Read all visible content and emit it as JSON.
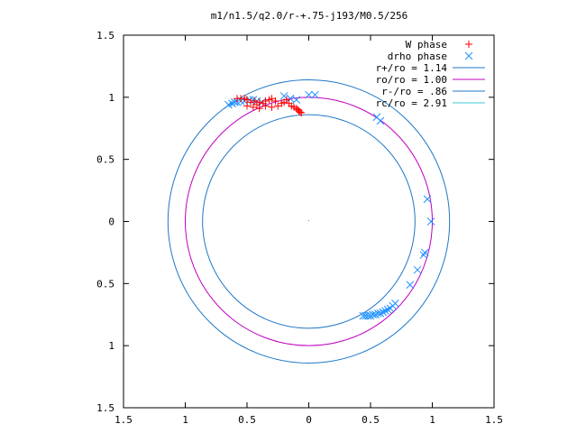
{
  "chart_data": {
    "type": "scatter",
    "title": "m1/n1.5/q2.0/r-+.75-j193/M0.5/256",
    "xlim": [
      -1.5,
      1.5
    ],
    "ylim": [
      -1.5,
      1.5
    ],
    "x_ticks": [
      -1.5,
      -1,
      -0.5,
      0,
      0.5,
      1,
      1.5
    ],
    "x_tick_labels": [
      "1.5",
      "1",
      "0.5",
      "0",
      "0.5",
      "1",
      "1.5"
    ],
    "y_ticks": [
      1.5,
      1,
      0.5,
      0,
      -0.5,
      -1,
      -1.5
    ],
    "y_tick_labels": [
      "1.5",
      "1",
      "0.5",
      "0",
      "0.5",
      "1",
      "1.5"
    ],
    "grid": false,
    "legend_position": "top-right",
    "legend": [
      {
        "label": "W phase",
        "kind": "point",
        "marker": "+",
        "color": "#ff0000"
      },
      {
        "label": "drho phase",
        "kind": "point",
        "marker": "x",
        "color": "#1e90ff"
      },
      {
        "label": "r+/ro = 1.14",
        "kind": "line",
        "color": "#1f77c8"
      },
      {
        "label": "ro/ro = 1.00",
        "kind": "line",
        "color": "#c000c0"
      },
      {
        "label": "r-/ro = .86",
        "kind": "line",
        "color": "#1f77c8"
      },
      {
        "label": "rc/ro = 2.91",
        "kind": "line",
        "color": "#3cc8d8"
      }
    ],
    "circles": [
      {
        "r": 1.14,
        "color": "#1f77c8"
      },
      {
        "r": 1.0,
        "color": "#c000c0"
      },
      {
        "r": 0.86,
        "color": "#1f77c8"
      }
    ],
    "series": [
      {
        "name": "W phase",
        "marker": "+",
        "color": "#ff0000",
        "points": [
          [
            -0.58,
            0.99
          ],
          [
            -0.55,
            0.99
          ],
          [
            -0.52,
            0.99
          ],
          [
            -0.5,
            0.98
          ],
          [
            -0.47,
            0.96
          ],
          [
            -0.5,
            0.93
          ],
          [
            -0.45,
            0.92
          ],
          [
            -0.42,
            0.94
          ],
          [
            -0.4,
            0.96
          ],
          [
            -0.37,
            0.95
          ],
          [
            -0.35,
            0.97
          ],
          [
            -0.32,
            0.98
          ],
          [
            -0.3,
            0.99
          ],
          [
            -0.27,
            0.97
          ],
          [
            -0.25,
            0.93
          ],
          [
            -0.22,
            0.95
          ],
          [
            -0.2,
            0.96
          ],
          [
            -0.18,
            0.98
          ],
          [
            -0.16,
            0.95
          ],
          [
            -0.14,
            0.93
          ],
          [
            -0.12,
            0.92
          ],
          [
            -0.1,
            0.91
          ],
          [
            -0.09,
            0.9
          ],
          [
            -0.08,
            0.89
          ],
          [
            -0.07,
            0.88
          ],
          [
            -0.06,
            0.875
          ],
          [
            -0.3,
            0.92
          ],
          [
            -0.35,
            0.93
          ],
          [
            -0.4,
            0.91
          ],
          [
            -0.44,
            0.97
          ]
        ]
      },
      {
        "name": "drho phase",
        "marker": "x",
        "color": "#1e90ff",
        "points": [
          [
            -0.65,
            0.94
          ],
          [
            -0.62,
            0.95
          ],
          [
            -0.6,
            0.96
          ],
          [
            -0.58,
            0.96
          ],
          [
            -0.55,
            0.97
          ],
          [
            -0.52,
            0.97
          ],
          [
            -0.48,
            0.98
          ],
          [
            -0.45,
            0.98
          ],
          [
            -0.42,
            0.97
          ],
          [
            -0.38,
            0.96
          ],
          [
            -0.2,
            1.01
          ],
          [
            -0.15,
            0.99
          ],
          [
            -0.1,
            0.98
          ],
          [
            0.0,
            1.02
          ],
          [
            0.05,
            1.02
          ],
          [
            0.55,
            0.84
          ],
          [
            0.58,
            0.81
          ],
          [
            0.96,
            0.18
          ],
          [
            0.99,
            0.0
          ],
          [
            0.94,
            -0.25
          ],
          [
            0.93,
            -0.27
          ],
          [
            0.88,
            -0.39
          ],
          [
            0.82,
            -0.51
          ],
          [
            0.7,
            -0.66
          ],
          [
            0.68,
            -0.68
          ],
          [
            0.66,
            -0.7
          ],
          [
            0.64,
            -0.71
          ],
          [
            0.62,
            -0.72
          ],
          [
            0.6,
            -0.73
          ],
          [
            0.58,
            -0.74
          ],
          [
            0.56,
            -0.74
          ],
          [
            0.54,
            -0.75
          ],
          [
            0.52,
            -0.75
          ],
          [
            0.5,
            -0.76
          ],
          [
            0.48,
            -0.76
          ],
          [
            0.46,
            -0.76
          ],
          [
            0.44,
            -0.76
          ]
        ]
      }
    ]
  }
}
